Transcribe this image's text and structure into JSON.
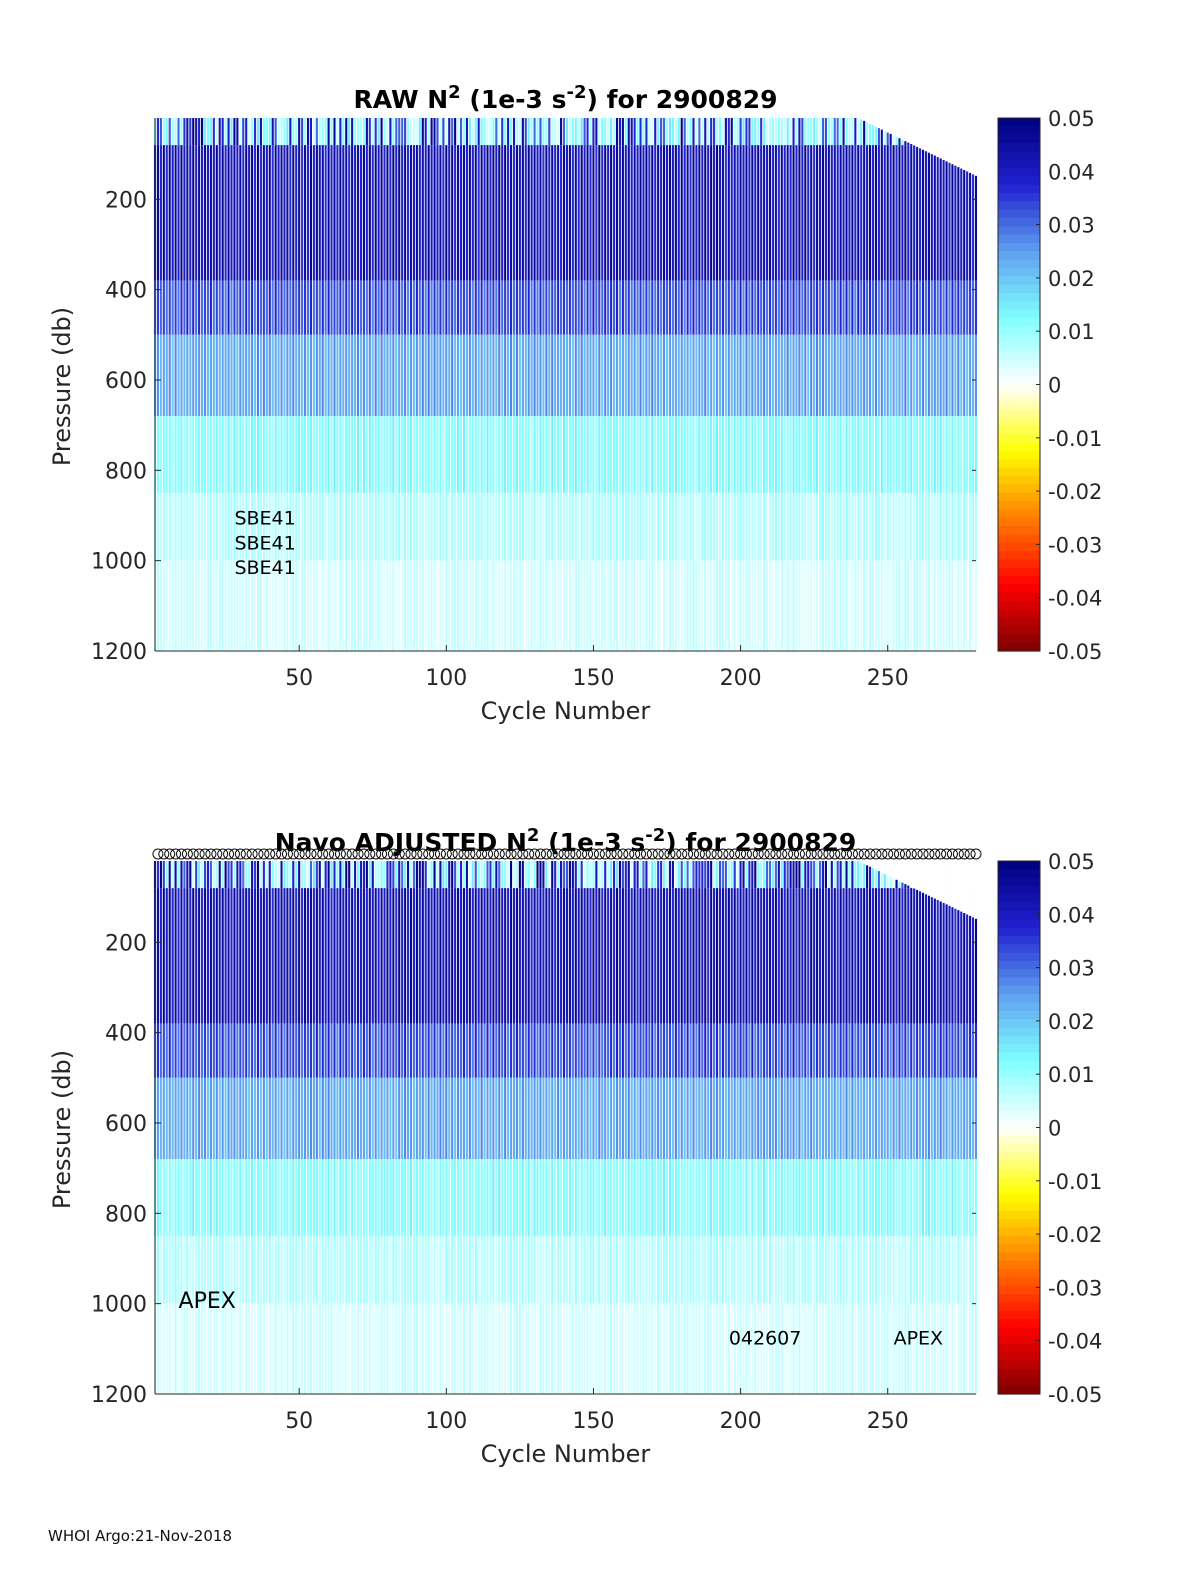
{
  "footer": "WHOI Argo:21-Nov-2018",
  "colorbar": {
    "ticks": [
      "0.05",
      "0.04",
      "0.03",
      "0.02",
      "0.01",
      "0",
      "-0.01",
      "-0.02",
      "-0.03",
      "-0.04",
      "-0.05"
    ],
    "range": [
      -0.05,
      0.05
    ],
    "stops": [
      "#7f0000",
      "#ff0000",
      "#ff7f00",
      "#ffff00",
      "#ffffff",
      "#7fffff",
      "#5f9fef",
      "#2020cf",
      "#00007f"
    ]
  },
  "chart_data": [
    {
      "type": "heatmap",
      "title_main": "RAW N",
      "title_sup": "2",
      "title_mid": " (1e-3 s",
      "title_sup2": "-2",
      "title_end": ") for 2900829",
      "xlabel": "Cycle Number",
      "ylabel": "Pressure (db)",
      "xlim": [
        1,
        280
      ],
      "ylim": [
        1200,
        20
      ],
      "xticks": [
        50,
        100,
        150,
        200,
        250
      ],
      "yticks": [
        200,
        400,
        600,
        800,
        1000,
        1200
      ],
      "annotations": [
        {
          "text": "SBE41",
          "x": 28,
          "y": 920,
          "size": "small"
        },
        {
          "text": "SBE41",
          "x": 28,
          "y": 975,
          "size": "small"
        },
        {
          "text": "SBE41",
          "x": 28,
          "y": 1030,
          "size": "small"
        }
      ],
      "pressure_layers": [
        {
          "p_top": 20,
          "p_bottom": 80,
          "value": 0.02
        },
        {
          "p_top": 80,
          "p_bottom": 380,
          "value": 0.046
        },
        {
          "p_top": 380,
          "p_bottom": 500,
          "value": 0.036
        },
        {
          "p_top": 500,
          "p_bottom": 680,
          "value": 0.026
        },
        {
          "p_top": 680,
          "p_bottom": 850,
          "value": 0.013
        },
        {
          "p_top": 850,
          "p_bottom": 1000,
          "value": 0.008
        },
        {
          "p_top": 1000,
          "p_bottom": 1200,
          "value": 0.005
        }
      ],
      "markers_top": false
    },
    {
      "type": "heatmap",
      "title_main": "Navo  ADJUSTED N",
      "title_sup": "2",
      "title_mid": " (1e-3 s",
      "title_sup2": "-2",
      "title_end": ") for 2900829",
      "xlabel": "Cycle Number",
      "ylabel": "Pressure (db)",
      "xlim": [
        1,
        280
      ],
      "ylim": [
        1200,
        20
      ],
      "xticks": [
        50,
        100,
        150,
        200,
        250
      ],
      "yticks": [
        200,
        400,
        600,
        800,
        1000,
        1200
      ],
      "annotations": [
        {
          "text": "APEX",
          "x": 9,
          "y": 1010,
          "size": "large"
        },
        {
          "text": "042607",
          "x": 196,
          "y": 1090,
          "size": "small"
        },
        {
          "text": "APEX",
          "x": 252,
          "y": 1090,
          "size": "small"
        }
      ],
      "pressure_layers": [
        {
          "p_top": 20,
          "p_bottom": 80,
          "value": 0.02
        },
        {
          "p_top": 80,
          "p_bottom": 380,
          "value": 0.046
        },
        {
          "p_top": 380,
          "p_bottom": 500,
          "value": 0.036
        },
        {
          "p_top": 500,
          "p_bottom": 680,
          "value": 0.026
        },
        {
          "p_top": 680,
          "p_bottom": 850,
          "value": 0.013
        },
        {
          "p_top": 850,
          "p_bottom": 1000,
          "value": 0.008
        },
        {
          "p_top": 1000,
          "p_bottom": 1200,
          "value": 0.005
        }
      ],
      "markers_top": true
    }
  ]
}
